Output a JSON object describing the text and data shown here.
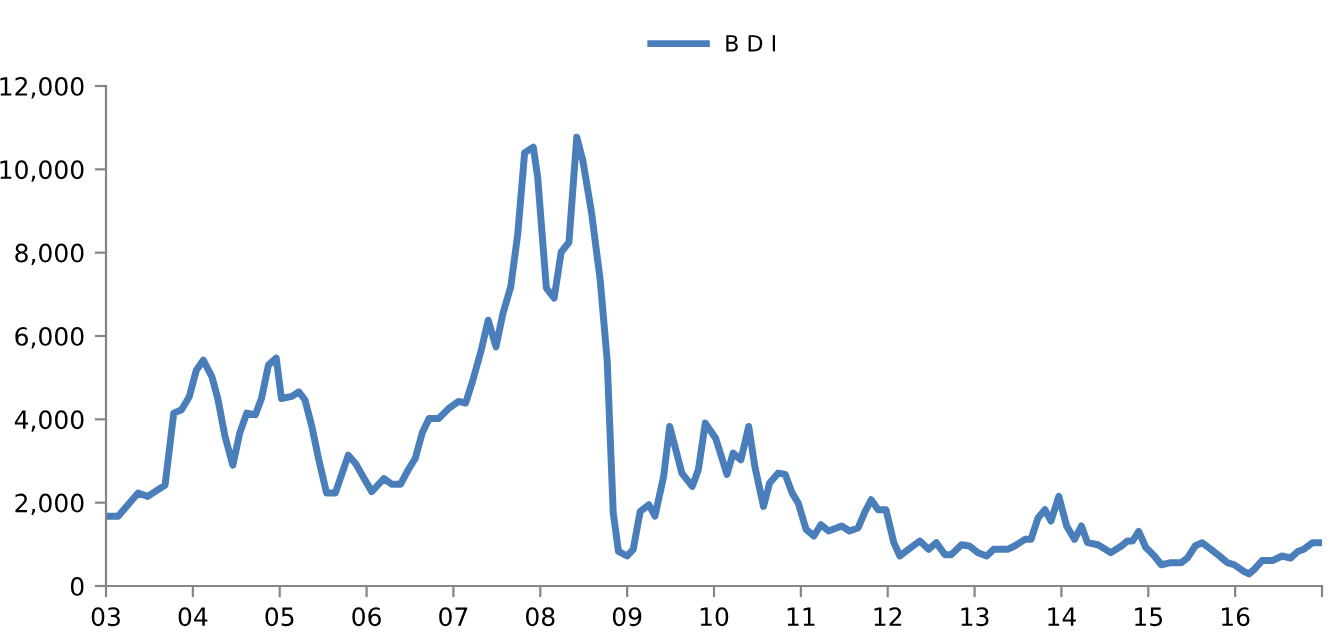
{
  "chart_data": {
    "type": "line",
    "legend": "top",
    "series": [
      {
        "name": "B D I",
        "color": "#4a7ebb",
        "x": [
          2003.0,
          2003.14,
          2003.37,
          2003.48,
          2003.68,
          2003.78,
          2003.87,
          2003.96,
          2004.04,
          2004.12,
          2004.22,
          2004.29,
          2004.37,
          2004.46,
          2004.54,
          2004.62,
          2004.72,
          2004.79,
          2004.87,
          2004.96,
          2005.02,
          2005.14,
          2005.22,
          2005.29,
          2005.37,
          2005.45,
          2005.54,
          2005.64,
          2005.79,
          2005.88,
          2005.98,
          2006.06,
          2006.2,
          2006.29,
          2006.39,
          2006.48,
          2006.56,
          2006.64,
          2006.72,
          2006.83,
          2006.95,
          2007.06,
          2007.14,
          2007.22,
          2007.32,
          2007.4,
          2007.49,
          2007.57,
          2007.66,
          2007.74,
          2007.82,
          2007.92,
          2007.97,
          2008.07,
          2008.16,
          2008.24,
          2008.33,
          2008.42,
          2008.49,
          2008.59,
          2008.69,
          2008.77,
          2008.84,
          2008.9,
          2009.0,
          2009.07,
          2009.15,
          2009.25,
          2009.32,
          2009.42,
          2009.49,
          2009.63,
          2009.75,
          2009.82,
          2009.9,
          2010.02,
          2010.15,
          2010.22,
          2010.31,
          2010.4,
          2010.47,
          2010.57,
          2010.64,
          2010.74,
          2010.82,
          2010.9,
          2010.97,
          2011.06,
          2011.15,
          2011.23,
          2011.32,
          2011.47,
          2011.56,
          2011.66,
          2011.74,
          2011.81,
          2011.89,
          2011.98,
          2012.07,
          2012.14,
          2012.24,
          2012.37,
          2012.47,
          2012.56,
          2012.66,
          2012.73,
          2012.85,
          2012.94,
          2013.04,
          2013.14,
          2013.22,
          2013.38,
          2013.46,
          2013.58,
          2013.65,
          2013.73,
          2013.81,
          2013.88,
          2013.97,
          2014.06,
          2014.15,
          2014.23,
          2014.3,
          2014.42,
          2014.57,
          2014.69,
          2014.76,
          2014.82,
          2014.89,
          2014.97,
          2015.07,
          2015.15,
          2015.26,
          2015.38,
          2015.45,
          2015.54,
          2015.62,
          2015.72,
          2015.82,
          2015.91,
          2015.99,
          2016.1,
          2016.16,
          2016.22,
          2016.31,
          2016.43,
          2016.54,
          2016.64,
          2016.72,
          2016.79,
          2016.89,
          2016.98
        ],
        "values": [
          1675,
          1675,
          2230,
          2150,
          2420,
          4150,
          4230,
          4550,
          5180,
          5420,
          5020,
          4470,
          3590,
          2900,
          3670,
          4150,
          4110,
          4500,
          5300,
          5470,
          4500,
          4550,
          4660,
          4470,
          3830,
          3030,
          2230,
          2230,
          3140,
          2920,
          2550,
          2265,
          2580,
          2440,
          2440,
          2790,
          3060,
          3670,
          4020,
          4020,
          4270,
          4430,
          4390,
          4910,
          5660,
          6380,
          5740,
          6540,
          7180,
          8440,
          10400,
          10530,
          9810,
          7150,
          6910,
          8010,
          8250,
          10770,
          10210,
          8960,
          7340,
          5420,
          1750,
          830,
          720,
          880,
          1790,
          1950,
          1675,
          2630,
          3830,
          2710,
          2390,
          2790,
          3910,
          3540,
          2680,
          3190,
          3030,
          3830,
          2870,
          1910,
          2470,
          2710,
          2680,
          2230,
          1990,
          1360,
          1200,
          1470,
          1320,
          1440,
          1320,
          1400,
          1790,
          2070,
          1830,
          1830,
          1040,
          720,
          880,
          1080,
          880,
          1040,
          750,
          750,
          990,
          960,
          800,
          720,
          880,
          880,
          960,
          1120,
          1120,
          1630,
          1830,
          1560,
          2150,
          1440,
          1120,
          1440,
          1040,
          990,
          800,
          960,
          1080,
          1080,
          1310,
          930,
          720,
          510,
          560,
          560,
          670,
          960,
          1040,
          880,
          720,
          560,
          510,
          350,
          290,
          400,
          610,
          610,
          720,
          670,
          830,
          880,
          1040,
          1040
        ]
      }
    ],
    "xlim": [
      2003,
      2017
    ],
    "xticks": [
      {
        "value": 2003,
        "label": "03"
      },
      {
        "value": 2004,
        "label": "04"
      },
      {
        "value": 2005,
        "label": "05"
      },
      {
        "value": 2006,
        "label": "06"
      },
      {
        "value": 2007,
        "label": "07"
      },
      {
        "value": 2008,
        "label": "08"
      },
      {
        "value": 2009,
        "label": "09"
      },
      {
        "value": 2010,
        "label": "10"
      },
      {
        "value": 2011,
        "label": "11"
      },
      {
        "value": 2012,
        "label": "12"
      },
      {
        "value": 2013,
        "label": "13"
      },
      {
        "value": 2014,
        "label": "14"
      },
      {
        "value": 2015,
        "label": "15"
      },
      {
        "value": 2016,
        "label": "16"
      },
      {
        "value": 2017,
        "label": null
      }
    ],
    "ylim": [
      0,
      12000
    ],
    "yticks": [
      0,
      {
        "value": 2000,
        "label": "2,000"
      },
      {
        "value": 4000,
        "label": "4,000"
      },
      {
        "value": 6000,
        "label": "6,000"
      },
      {
        "value": 8000,
        "label": "8,000"
      },
      {
        "value": 10000,
        "label": "10,000"
      },
      {
        "value": 12000,
        "label": "12,000"
      }
    ]
  }
}
